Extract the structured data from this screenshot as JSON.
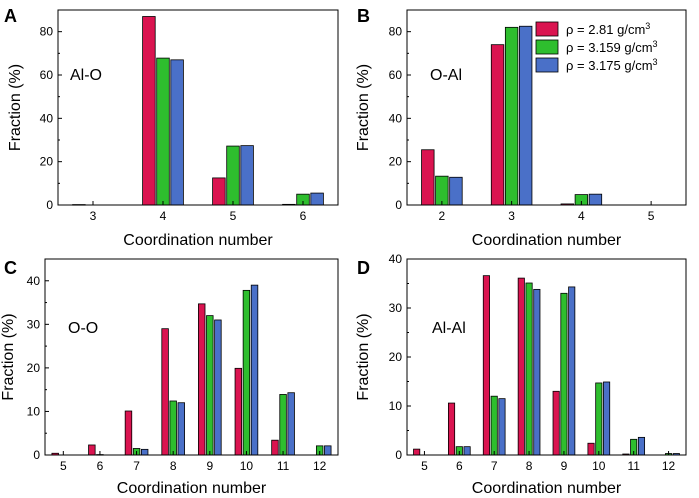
{
  "figure": {
    "legend": {
      "items": [
        {
          "label": "ρ = 2.81 g/cm",
          "sup": "3",
          "color": "#DA1450"
        },
        {
          "label": "ρ = 3.159 g/cm",
          "sup": "3",
          "color": "#2EBE2E"
        },
        {
          "label": "ρ = 3.175 g/cm",
          "sup": "3",
          "color": "#4A70C8"
        }
      ]
    }
  },
  "chart_data": [
    {
      "panel": "A",
      "type": "bar",
      "annotation": "Al-O",
      "xlabel": "Coordination number",
      "ylabel": "Fraction (%)",
      "categories": [
        "3",
        "4",
        "5",
        "6"
      ],
      "ylim": [
        0,
        90
      ],
      "yticks": [
        0,
        20,
        40,
        60,
        80
      ],
      "series": [
        {
          "name": "ρ = 2.81 g/cm3",
          "values": [
            0.2,
            87,
            12.5,
            0.3
          ]
        },
        {
          "name": "ρ = 3.159 g/cm3",
          "values": [
            0,
            67.8,
            27.2,
            5
          ]
        },
        {
          "name": "ρ = 3.175 g/cm3",
          "values": [
            0,
            67,
            27.4,
            5.5
          ]
        }
      ]
    },
    {
      "panel": "B",
      "type": "bar",
      "annotation": "O-Al",
      "xlabel": "Coordination number",
      "ylabel": "Fraction (%)",
      "categories": [
        "2",
        "3",
        "4",
        "5"
      ],
      "ylim": [
        0,
        90
      ],
      "yticks": [
        0,
        20,
        40,
        60,
        80
      ],
      "series": [
        {
          "name": "ρ = 2.81 g/cm3",
          "values": [
            25.5,
            74,
            0.5,
            0
          ]
        },
        {
          "name": "ρ = 3.159 g/cm3",
          "values": [
            13.3,
            82,
            4.8,
            0
          ]
        },
        {
          "name": "ρ = 3.175 g/cm3",
          "values": [
            12.8,
            82.5,
            5,
            0
          ]
        }
      ]
    },
    {
      "panel": "C",
      "type": "bar",
      "annotation": "O-O",
      "xlabel": "Coordination number",
      "ylabel": "Fraction (%)",
      "categories": [
        "5",
        "6",
        "7",
        "8",
        "9",
        "10",
        "11",
        "12"
      ],
      "ylim": [
        0,
        45
      ],
      "yticks": [
        0,
        10,
        20,
        30,
        40
      ],
      "series": [
        {
          "name": "ρ = 2.81 g/cm3",
          "values": [
            0.4,
            2.3,
            10.1,
            29,
            34.7,
            19.9,
            3.4,
            0
          ]
        },
        {
          "name": "ρ = 3.159 g/cm3",
          "values": [
            0,
            0.1,
            1.5,
            12.4,
            32,
            37.8,
            13.9,
            2.1
          ]
        },
        {
          "name": "ρ = 3.175 g/cm3",
          "values": [
            0,
            0,
            1.3,
            12,
            31,
            39,
            14.3,
            2.1
          ]
        }
      ]
    },
    {
      "panel": "D",
      "type": "bar",
      "annotation": "Al-Al",
      "xlabel": "Coordination number",
      "ylabel": "Fraction (%)",
      "categories": [
        "5",
        "6",
        "7",
        "8",
        "9",
        "10",
        "11",
        "12"
      ],
      "ylim": [
        0,
        40
      ],
      "yticks": [
        0,
        10,
        20,
        30,
        40
      ],
      "series": [
        {
          "name": "ρ = 2.81 g/cm3",
          "values": [
            1.2,
            10.6,
            36.6,
            36.1,
            13,
            2.4,
            0.2,
            0
          ]
        },
        {
          "name": "ρ = 3.159 g/cm3",
          "values": [
            0,
            1.7,
            12,
            35.1,
            33,
            14.7,
            3.2,
            0.3
          ]
        },
        {
          "name": "ρ = 3.175 g/cm3",
          "values": [
            0,
            1.7,
            11.5,
            33.8,
            34.3,
            14.9,
            3.6,
            0.3
          ]
        }
      ]
    }
  ]
}
